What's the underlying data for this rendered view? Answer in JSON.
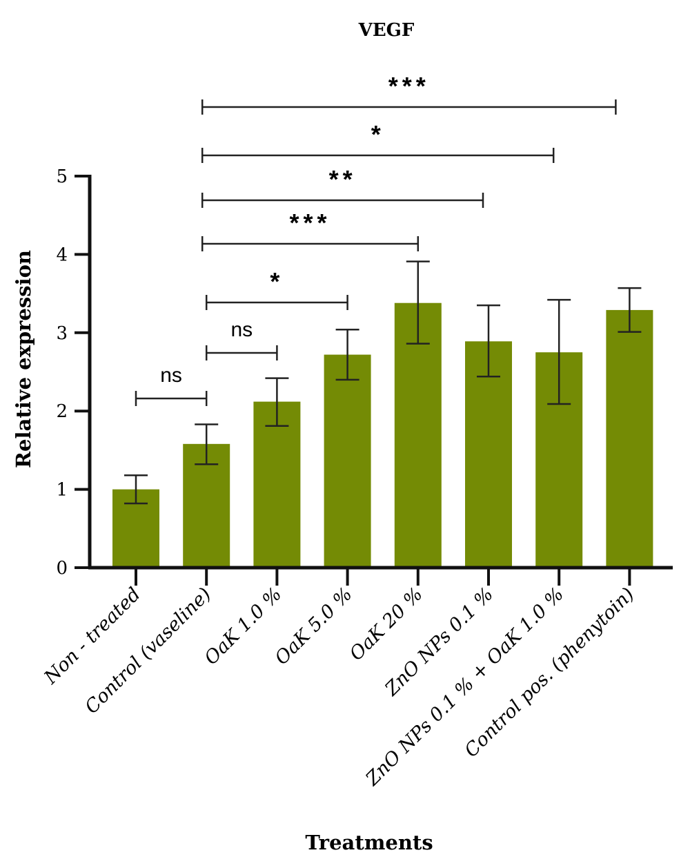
{
  "chart_data": {
    "type": "bar",
    "title": "VEGF",
    "xlabel": "Treatments",
    "ylabel": "Relative expression",
    "ylim": [
      0,
      5
    ],
    "yticks": [
      "0",
      "1",
      "2",
      "3",
      "4",
      "5"
    ],
    "grid": false,
    "bar_color": "#748b05",
    "categories": [
      "Non - treated",
      "Control (vaseline)",
      "OaK 1.0 %",
      "OaK 5.0 %",
      "OaK 20 %",
      "ZnO NPs 0.1 %",
      "ZnO NPs 0.1 % + OaK 1.0 %",
      "Control pos. (phenytoin)"
    ],
    "values": [
      1.0,
      1.58,
      2.12,
      2.72,
      3.38,
      2.89,
      2.75,
      3.29
    ],
    "error_upper": [
      1.18,
      1.83,
      2.42,
      3.04,
      3.91,
      3.35,
      3.42,
      3.57
    ],
    "error_lower": [
      0.82,
      1.32,
      1.81,
      2.4,
      2.86,
      2.44,
      2.09,
      3.01
    ],
    "comparisons": [
      {
        "from": 0,
        "to": 1,
        "label": "ns"
      },
      {
        "from": 1,
        "to": 2,
        "label": "ns"
      },
      {
        "from": 1,
        "to": 3,
        "label": "*"
      },
      {
        "from": 1,
        "to": 4,
        "label": "***"
      },
      {
        "from": 1,
        "to": 5,
        "label": "**"
      },
      {
        "from": 1,
        "to": 6,
        "label": "*"
      },
      {
        "from": 1,
        "to": 7,
        "label": "***"
      }
    ]
  }
}
